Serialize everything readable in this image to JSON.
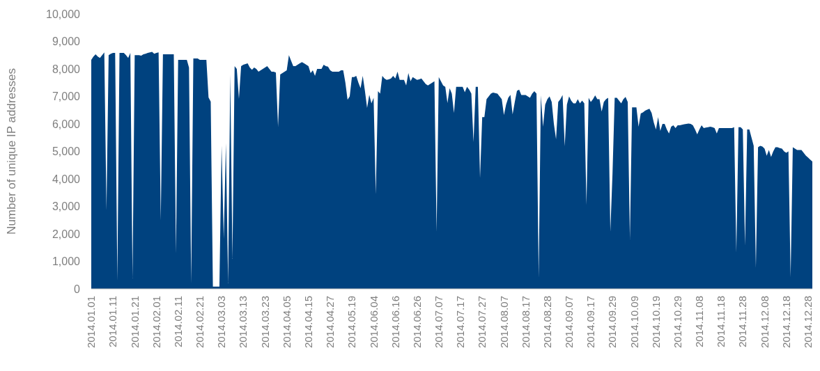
{
  "chart_data": {
    "type": "area",
    "ylabel": "Number of unique IP addresses",
    "color": "#00427f",
    "ylim": [
      0,
      10000
    ],
    "yticks": [
      {
        "value": 0,
        "label": "0"
      },
      {
        "value": 1000,
        "label": "1,000"
      },
      {
        "value": 2000,
        "label": "2,000"
      },
      {
        "value": 3000,
        "label": "3,000"
      },
      {
        "value": 4000,
        "label": "4,000"
      },
      {
        "value": 5000,
        "label": "5,000"
      },
      {
        "value": 6000,
        "label": "6,000"
      },
      {
        "value": 7000,
        "label": "7,000"
      },
      {
        "value": 8000,
        "label": "8,000"
      },
      {
        "value": 9000,
        "label": "9,000"
      },
      {
        "value": 10000,
        "label": "10,000"
      }
    ],
    "categories": [
      "2014.01.01",
      null,
      null,
      null,
      null,
      null,
      null,
      null,
      null,
      null,
      "2014.01.11",
      null,
      null,
      null,
      null,
      null,
      null,
      null,
      null,
      null,
      "2014.01.21",
      null,
      null,
      null,
      null,
      null,
      null,
      null,
      null,
      null,
      "2014.02.01",
      null,
      null,
      null,
      null,
      null,
      null,
      null,
      null,
      null,
      "2014.02.11",
      null,
      null,
      null,
      null,
      null,
      null,
      null,
      null,
      null,
      "2014.02.21",
      null,
      null,
      null,
      null,
      null,
      null,
      null,
      null,
      null,
      "2014.03.03",
      null,
      null,
      null,
      null,
      null,
      null,
      null,
      null,
      null,
      "2014.03.13",
      null,
      null,
      null,
      null,
      null,
      null,
      null,
      null,
      null,
      "2014.03.23",
      null,
      null,
      null,
      null,
      null,
      null,
      null,
      null,
      null,
      "2014.04.05",
      null,
      null,
      null,
      null,
      null,
      null,
      null,
      null,
      null,
      "2014.04.15",
      null,
      null,
      null,
      null,
      null,
      null,
      null,
      null,
      null,
      "2014.04.27",
      null,
      null,
      null,
      null,
      null,
      null,
      null,
      null,
      null,
      "2014.05.19",
      null,
      null,
      null,
      null,
      null,
      null,
      null,
      null,
      null,
      "2014.06.04",
      null,
      null,
      null,
      null,
      null,
      null,
      null,
      null,
      null,
      "2014.06.16",
      null,
      null,
      null,
      null,
      null,
      null,
      null,
      null,
      null,
      "2014.06.26",
      null,
      null,
      null,
      null,
      null,
      null,
      null,
      null,
      null,
      "2014.07.07",
      null,
      null,
      null,
      null,
      null,
      null,
      null,
      null,
      null,
      "2014.07.17",
      null,
      null,
      null,
      null,
      null,
      null,
      null,
      null,
      null,
      "2014.07.27",
      null,
      null,
      null,
      null,
      null,
      null,
      null,
      null,
      null,
      "2014.08.07",
      null,
      null,
      null,
      null,
      null,
      null,
      null,
      null,
      null,
      "2014.08.17",
      null,
      null,
      null,
      null,
      null,
      null,
      null,
      null,
      null,
      "2014.08.28",
      null,
      null,
      null,
      null,
      null,
      null,
      null,
      null,
      null,
      "2014.09.07",
      null,
      null,
      null,
      null,
      null,
      null,
      null,
      null,
      null,
      "2014.09.17",
      null,
      null,
      null,
      null,
      null,
      null,
      null,
      null,
      null,
      "2014.09.29",
      null,
      null,
      null,
      null,
      null,
      null,
      null,
      null,
      null,
      "2014.10.09",
      null,
      null,
      null,
      null,
      null,
      null,
      null,
      null,
      null,
      "2014.10.19",
      null,
      null,
      null,
      null,
      null,
      null,
      null,
      null,
      null,
      "2014.10.29",
      null,
      null,
      null,
      null,
      null,
      null,
      null,
      null,
      null,
      "2014.11.08",
      null,
      null,
      null,
      null,
      null,
      null,
      null,
      null,
      null,
      "2014.11.18",
      null,
      null,
      null,
      null,
      null,
      null,
      null,
      null,
      null,
      "2014.11.28",
      null,
      null,
      null,
      null,
      null,
      null,
      null,
      null,
      null,
      "2014.12.08",
      null,
      null,
      null,
      null,
      null,
      null,
      null,
      null,
      null,
      "2014.12.18",
      null,
      null,
      null,
      null,
      null,
      null,
      null,
      null,
      null,
      "2014.12.28",
      null,
      null
    ],
    "values": [
      8330,
      8450,
      8530,
      8450,
      8400,
      8500,
      8600,
      2860,
      8500,
      8550,
      8580,
      8580,
      300,
      8580,
      8580,
      8580,
      8500,
      8400,
      8580,
      380,
      8500,
      8500,
      8500,
      8480,
      8530,
      8550,
      8580,
      8600,
      8620,
      8550,
      8580,
      8600,
      2500,
      8530,
      8530,
      8530,
      8530,
      8530,
      8530,
      1300,
      8330,
      8330,
      8330,
      8330,
      8330,
      8050,
      200,
      8380,
      8380,
      8380,
      8330,
      8330,
      8330,
      8330,
      6960,
      6810,
      80,
      80,
      80,
      80,
      5210,
      1820,
      5300,
      200,
      7800,
      1090,
      8100,
      8000,
      6910,
      8100,
      8150,
      8180,
      8200,
      8050,
      7970,
      8050,
      8000,
      7900,
      7950,
      8000,
      8050,
      8100,
      8000,
      7900,
      7900,
      7870,
      5900,
      7800,
      7850,
      7900,
      7950,
      8500,
      8300,
      8100,
      8100,
      8150,
      8200,
      8250,
      8200,
      8150,
      8100,
      7850,
      7950,
      7750,
      8000,
      8000,
      8000,
      8150,
      8100,
      8080,
      7950,
      7900,
      7900,
      7900,
      7900,
      7950,
      7950,
      7500,
      6880,
      7000,
      7700,
      7700,
      7750,
      7500,
      7300,
      7750,
      7200,
      6580,
      7060,
      6750,
      6950,
      3440,
      7190,
      7100,
      7750,
      7650,
      7600,
      7620,
      7650,
      7750,
      7650,
      7900,
      7600,
      7600,
      7600,
      7400,
      7850,
      7550,
      7700,
      7650,
      7600,
      7620,
      7650,
      7550,
      7450,
      7400,
      7450,
      7500,
      7550,
      2080,
      7700,
      7550,
      7400,
      7350,
      6760,
      7300,
      7100,
      6400,
      7350,
      7350,
      7350,
      7350,
      7150,
      7350,
      7250,
      7100,
      5340,
      7350,
      7350,
      4030,
      6250,
      6250,
      6900,
      7000,
      7100,
      7140,
      7120,
      7100,
      7000,
      6900,
      6320,
      6700,
      6950,
      7060,
      6350,
      6800,
      7200,
      7250,
      7050,
      7050,
      7050,
      7000,
      6950,
      7100,
      7190,
      7100,
      400,
      7040,
      5900,
      6700,
      6900,
      7000,
      6800,
      6000,
      5440,
      6800,
      6900,
      7050,
      5190,
      6700,
      7000,
      6840,
      6750,
      6750,
      6900,
      6750,
      6850,
      6750,
      3060,
      6950,
      6800,
      6900,
      7040,
      6900,
      6900,
      6450,
      6800,
      6900,
      6950,
      2080,
      4200,
      6950,
      6950,
      6850,
      6750,
      6900,
      6980,
      6800,
      1800,
      6600,
      6600,
      6600,
      5900,
      6380,
      6420,
      6480,
      6520,
      6550,
      6400,
      6050,
      5800,
      6250,
      5750,
      6000,
      6000,
      5800,
      5650,
      5900,
      5950,
      5850,
      5950,
      5950,
      5970,
      5990,
      6000,
      6010,
      6000,
      5950,
      5800,
      5620,
      5800,
      5950,
      5850,
      5870,
      5880,
      5900,
      5880,
      5850,
      5650,
      5850,
      5850,
      5850,
      5850,
      5850,
      5850,
      5850,
      5880,
      1330,
      5880,
      5880,
      5800,
      1570,
      5800,
      5800,
      5500,
      5200,
      760,
      5150,
      5200,
      5180,
      5100,
      4840,
      5050,
      4800,
      5000,
      5150,
      5150,
      5120,
      5100,
      5000,
      4950,
      5000,
      430,
      5150,
      5100,
      5050,
      5050,
      5050,
      4950,
      4850,
      4780,
      4700,
      4630
    ]
  }
}
